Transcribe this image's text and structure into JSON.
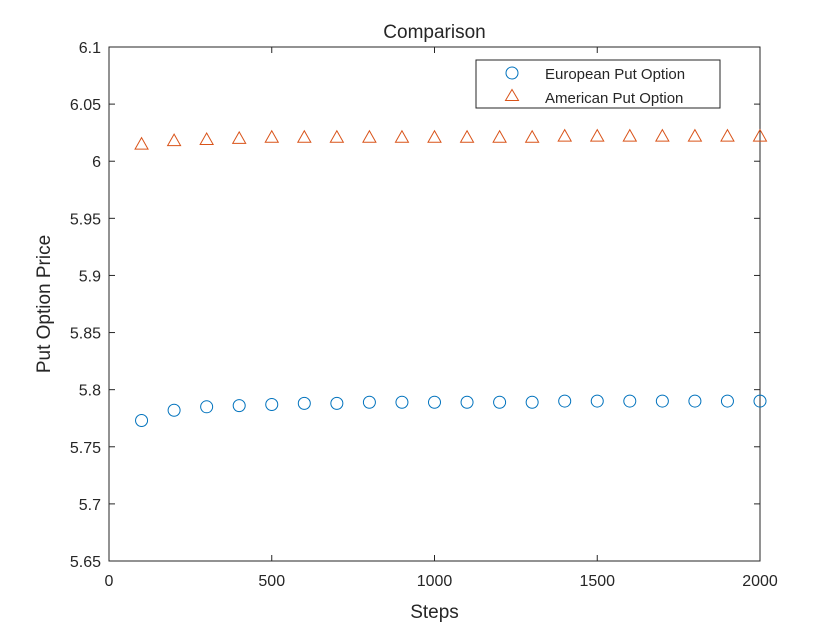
{
  "chart_data": {
    "type": "scatter",
    "title": "Comparison",
    "xlabel": "Steps",
    "ylabel": "Put Option Price",
    "xlim": [
      0,
      2000
    ],
    "ylim": [
      5.65,
      6.1
    ],
    "xticks": [
      0,
      500,
      1000,
      1500,
      2000
    ],
    "xtick_labels": [
      "0",
      "500",
      "1000",
      "1500",
      "2000"
    ],
    "yticks": [
      5.65,
      5.7,
      5.75,
      5.8,
      5.85,
      5.9,
      5.95,
      6.0,
      6.05,
      6.1
    ],
    "ytick_labels": [
      "5.65",
      "5.7",
      "5.75",
      "5.8",
      "5.85",
      "5.9",
      "5.95",
      "6",
      "6.05",
      "6.1"
    ],
    "grid": false,
    "legend_position": "top-right",
    "series": [
      {
        "name": "European Put Option",
        "marker": "circle",
        "color": "#0072BD",
        "x": [
          100,
          200,
          300,
          400,
          500,
          600,
          700,
          800,
          900,
          1000,
          1100,
          1200,
          1300,
          1400,
          1500,
          1600,
          1700,
          1800,
          1900,
          2000
        ],
        "y": [
          5.773,
          5.782,
          5.785,
          5.786,
          5.787,
          5.788,
          5.788,
          5.789,
          5.789,
          5.789,
          5.789,
          5.789,
          5.789,
          5.79,
          5.79,
          5.79,
          5.79,
          5.79,
          5.79,
          5.79
        ]
      },
      {
        "name": "American Put Option",
        "marker": "triangle",
        "color": "#D95319",
        "x": [
          100,
          200,
          300,
          400,
          500,
          600,
          700,
          800,
          900,
          1000,
          1100,
          1200,
          1300,
          1400,
          1500,
          1600,
          1700,
          1800,
          1900,
          2000
        ],
        "y": [
          6.015,
          6.018,
          6.019,
          6.02,
          6.021,
          6.021,
          6.021,
          6.021,
          6.021,
          6.021,
          6.021,
          6.021,
          6.021,
          6.022,
          6.022,
          6.022,
          6.022,
          6.022,
          6.022,
          6.022
        ]
      }
    ]
  }
}
